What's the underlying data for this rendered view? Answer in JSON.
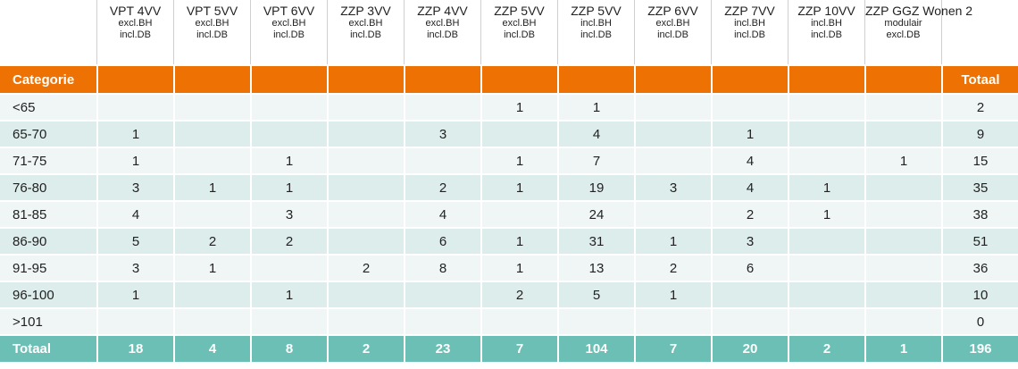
{
  "chart_data": {
    "type": "table",
    "columns": [
      {
        "name": "VPT 4VV",
        "sub": [
          "excl.BH",
          "incl.DB"
        ]
      },
      {
        "name": "VPT 5VV",
        "sub": [
          "excl.BH",
          "incl.DB"
        ]
      },
      {
        "name": "VPT 6VV",
        "sub": [
          "excl.BH",
          "incl.DB"
        ]
      },
      {
        "name": "ZZP 3VV",
        "sub": [
          "excl.BH",
          "incl.DB"
        ]
      },
      {
        "name": "ZZP 4VV",
        "sub": [
          "excl.BH",
          "incl.DB"
        ]
      },
      {
        "name": "ZZP 5VV",
        "sub": [
          "excl.BH",
          "incl.DB"
        ]
      },
      {
        "name": "ZZP 5VV",
        "sub": [
          "incl.BH",
          "incl.DB"
        ]
      },
      {
        "name": "ZZP 6VV",
        "sub": [
          "excl.BH",
          "incl.DB"
        ]
      },
      {
        "name": "ZZP 7VV",
        "sub": [
          "incl.BH",
          "incl.DB"
        ]
      },
      {
        "name": "ZZP 10VV",
        "sub": [
          "incl.BH",
          "incl.DB"
        ]
      },
      {
        "name": "ZZP GGZ Wonen 2",
        "sub": [
          "modulair",
          "excl.DB"
        ]
      }
    ],
    "category_header": "Categorie",
    "total_header": "Totaal",
    "rows": [
      {
        "label": "<65",
        "values": [
          "",
          "",
          "",
          "",
          "",
          "1",
          "1",
          "",
          "",
          "",
          ""
        ],
        "total": "2"
      },
      {
        "label": "65-70",
        "values": [
          "1",
          "",
          "",
          "",
          "3",
          "",
          "4",
          "",
          "1",
          "",
          ""
        ],
        "total": "9"
      },
      {
        "label": "71-75",
        "values": [
          "1",
          "",
          "1",
          "",
          "",
          "1",
          "7",
          "",
          "4",
          "",
          "1"
        ],
        "total": "15"
      },
      {
        "label": "76-80",
        "values": [
          "3",
          "1",
          "1",
          "",
          "2",
          "1",
          "19",
          "3",
          "4",
          "1",
          ""
        ],
        "total": "35"
      },
      {
        "label": "81-85",
        "values": [
          "4",
          "",
          "3",
          "",
          "4",
          "",
          "24",
          "",
          "2",
          "1",
          ""
        ],
        "total": "38"
      },
      {
        "label": "86-90",
        "values": [
          "5",
          "2",
          "2",
          "",
          "6",
          "1",
          "31",
          "1",
          "3",
          "",
          ""
        ],
        "total": "51"
      },
      {
        "label": "91-95",
        "values": [
          "3",
          "1",
          "",
          "2",
          "8",
          "1",
          "13",
          "2",
          "6",
          "",
          ""
        ],
        "total": "36"
      },
      {
        "label": "96-100",
        "values": [
          "1",
          "",
          "1",
          "",
          "",
          "2",
          "5",
          "1",
          "",
          "",
          ""
        ],
        "total": "10"
      },
      {
        "label": ">101",
        "values": [
          "",
          "",
          "",
          "",
          "",
          "",
          "",
          "",
          "",
          "",
          ""
        ],
        "total": "0"
      }
    ],
    "totals": {
      "label": "Totaal",
      "values": [
        "18",
        "4",
        "8",
        "2",
        "23",
        "7",
        "104",
        "7",
        "20",
        "2",
        "1"
      ],
      "total": "196"
    }
  },
  "colors": {
    "header": "#ee7203",
    "row_light": "#f0f6f6",
    "row_dark": "#ddedeb",
    "total": "#6bbfb5"
  }
}
